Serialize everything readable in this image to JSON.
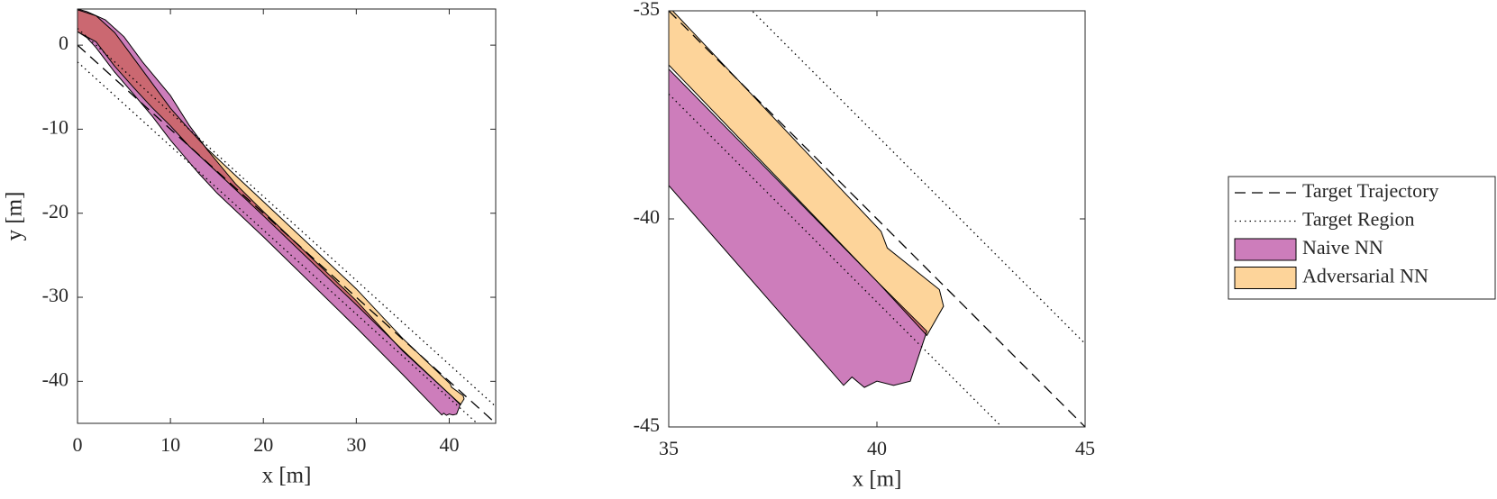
{
  "chart_data": [
    {
      "type": "area",
      "xlabel": "x [m]",
      "ylabel": "y [m]",
      "xlim": [
        0,
        45
      ],
      "ylim": [
        -45,
        4.3
      ],
      "xticks": [
        0,
        10,
        20,
        30,
        40
      ],
      "yticks": [
        -40,
        -30,
        -20,
        -10,
        0
      ],
      "series": [
        {
          "name": "Target Trajectory",
          "style": "dashed",
          "color": "#000000",
          "x": [
            0,
            45
          ],
          "values": [
            0,
            -45
          ]
        },
        {
          "name": "Target Region",
          "style": "dotted",
          "color": "#000000",
          "x": [
            0,
            45,
            null,
            0,
            45
          ],
          "values": [
            2,
            -43,
            null,
            -2,
            -47
          ]
        },
        {
          "name": "Naive NN",
          "style": "fill",
          "color": "#cd7dbb",
          "x": [
            0,
            1,
            3,
            5,
            7,
            10,
            12,
            14,
            17,
            20,
            30,
            35,
            40,
            41.2,
            40.8,
            40.4,
            40,
            39.7,
            39.4,
            39.2,
            35,
            30,
            20,
            15,
            13,
            10,
            8,
            6,
            4,
            2,
            1,
            0
          ],
          "values": [
            4.3,
            4,
            3,
            1,
            -2,
            -6,
            -9.5,
            -12.5,
            -16.5,
            -19.8,
            -30.4,
            -36.4,
            -41.5,
            -42.7,
            -43.9,
            -44,
            -43.9,
            -44.05,
            -43.8,
            -44,
            -39.2,
            -33.6,
            -22.8,
            -17.6,
            -15.2,
            -11.3,
            -8.4,
            -5.8,
            -3.2,
            -0.3,
            0.9,
            1.6
          ]
        },
        {
          "name": "Adversarial NN",
          "style": "fill",
          "color": "#fdd49a",
          "x": [
            0,
            2,
            4,
            6,
            8,
            10,
            12,
            14,
            20,
            30,
            35,
            40.1,
            40.25,
            41.5,
            41.6,
            41.2,
            40,
            35,
            30,
            20,
            15,
            12,
            10,
            8,
            6,
            4,
            2,
            0
          ],
          "values": [
            4.2,
            3.5,
            1.5,
            -1.5,
            -4.5,
            -7.5,
            -10,
            -12.4,
            -18.6,
            -29,
            -34.9,
            -40.3,
            -40.7,
            -41.7,
            -42.1,
            -42.8,
            -41.5,
            -36.3,
            -30.9,
            -20.3,
            -15.1,
            -12,
            -9.6,
            -7.4,
            -5,
            -2.5,
            0.4,
            1.6
          ]
        }
      ]
    },
    {
      "type": "area",
      "xlabel": "x [m]",
      "legend": "right",
      "xlim": [
        35,
        45
      ],
      "ylim": [
        -45,
        -35
      ],
      "xticks": [
        35,
        40,
        45
      ],
      "yticks": [
        -45,
        -40,
        -35
      ],
      "series": [
        {
          "name": "Target Trajectory",
          "style": "dashed",
          "color": "#000000",
          "x": [
            35,
            45
          ],
          "values": [
            -35,
            -45
          ]
        },
        {
          "name": "Target Region",
          "style": "dotted",
          "color": "#000000",
          "x": [
            35,
            45,
            null,
            35,
            45
          ],
          "values": [
            -33,
            -43,
            null,
            -37,
            -47
          ]
        },
        {
          "name": "Naive NN",
          "style": "fill",
          "color": "#cd7dbb",
          "x": [
            35,
            40,
            41.2,
            40.8,
            40.4,
            40,
            39.7,
            39.4,
            39.2,
            35
          ],
          "values": [
            -36.4,
            -41.5,
            -42.7,
            -43.9,
            -44,
            -43.9,
            -44.05,
            -43.8,
            -44,
            -39.2
          ]
        },
        {
          "name": "Adversarial NN",
          "style": "fill",
          "color": "#fdd49a",
          "x": [
            35,
            40.1,
            40.25,
            41.5,
            41.6,
            41.2,
            40,
            35
          ],
          "values": [
            -34.9,
            -40.3,
            -40.7,
            -41.7,
            -42.1,
            -42.8,
            -41.5,
            -36.3
          ]
        }
      ]
    }
  ]
}
